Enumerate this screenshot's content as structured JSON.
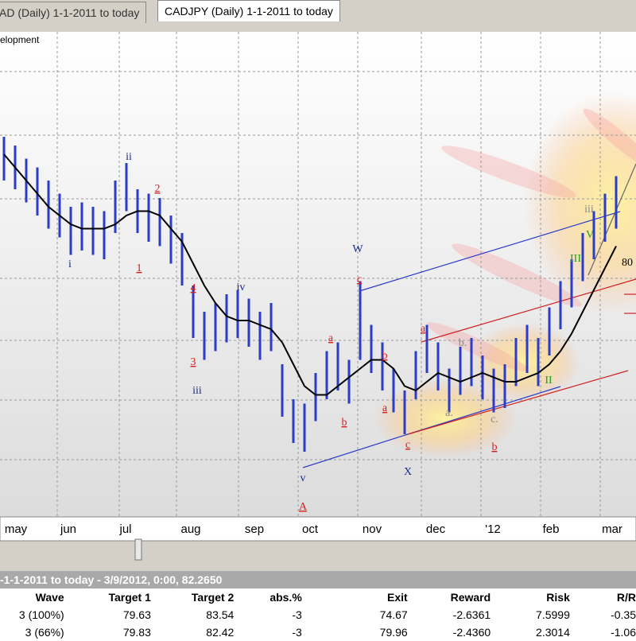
{
  "tabs": [
    "AD (Daily) 1-1-2011 to today",
    "CADJPY (Daily) 1-1-2011 to today"
  ],
  "chart": {
    "caption": "elopment",
    "right_label": "80",
    "months": [
      "may",
      "jun",
      "jul",
      "aug",
      "sep",
      "oct",
      "nov",
      "dec",
      "'12",
      "feb",
      "mar"
    ],
    "highs": [
      83.6,
      83.4,
      83.1,
      82.9,
      82.6,
      82.3,
      82.0,
      82.1,
      82.0,
      81.9,
      82.6,
      83.0,
      82.4,
      82.3,
      82.2,
      81.8,
      81.4,
      80.2,
      79.6,
      79.8,
      80.0,
      80.1,
      79.9,
      79.6,
      79.8,
      78.4,
      77.6,
      77.5,
      78.2,
      78.7,
      78.9,
      78.5,
      80.3,
      79.3,
      78.9,
      78.3,
      77.8,
      78.7,
      79.3,
      78.9,
      78.3,
      78.8,
      79.0,
      78.6,
      78.3,
      78.4,
      79.0,
      79.3,
      79.0,
      79.7,
      80.3,
      80.8,
      81.4,
      81.9,
      82.3,
      82.7
    ],
    "lows": [
      82.6,
      82.4,
      82.1,
      81.8,
      81.5,
      81.3,
      80.9,
      81.0,
      80.9,
      80.8,
      81.4,
      81.9,
      81.4,
      81.2,
      81.1,
      80.7,
      80.2,
      79.0,
      78.5,
      78.7,
      78.9,
      79.0,
      78.8,
      78.5,
      78.7,
      77.2,
      76.6,
      76.4,
      77.1,
      77.6,
      77.8,
      77.5,
      78.5,
      78.2,
      77.8,
      77.3,
      76.8,
      77.6,
      78.2,
      77.8,
      77.3,
      77.7,
      77.9,
      77.6,
      77.3,
      77.4,
      77.9,
      78.2,
      77.9,
      78.6,
      79.2,
      79.7,
      80.3,
      80.8,
      81.2,
      81.5
    ],
    "ma": [
      83.2,
      82.9,
      82.6,
      82.3,
      82.0,
      81.8,
      81.6,
      81.5,
      81.5,
      81.5,
      81.6,
      81.8,
      81.9,
      81.9,
      81.8,
      81.5,
      81.2,
      80.7,
      80.2,
      79.8,
      79.5,
      79.4,
      79.4,
      79.3,
      79.2,
      78.9,
      78.4,
      77.9,
      77.7,
      77.7,
      77.9,
      78.1,
      78.3,
      78.5,
      78.5,
      78.3,
      77.9,
      77.8,
      78.0,
      78.2,
      78.1,
      78.0,
      78.1,
      78.2,
      78.1,
      78.0,
      78.0,
      78.1,
      78.2,
      78.4,
      78.7,
      79.1,
      79.6,
      80.1,
      80.6,
      81.1
    ],
    "bar_color": "#2a3cc8",
    "ma_color": "#000000",
    "wave_labels": [
      {
        "text": "ii",
        "color": "#1a2a8a"
      },
      {
        "text": "i",
        "color": "#1a2a8a"
      },
      {
        "text": "2",
        "color": "#d02020"
      },
      {
        "text": "1",
        "color": "#d02020"
      },
      {
        "text": "iv",
        "color": "#1a2a8a"
      },
      {
        "text": "4",
        "color": "#d02020"
      },
      {
        "text": "3",
        "color": "#d02020"
      },
      {
        "text": "iii",
        "color": "#1a2a8a"
      },
      {
        "text": "W",
        "color": "#1a2a8a"
      },
      {
        "text": "c",
        "color": "#d02020"
      },
      {
        "text": "a",
        "color": "#d02020"
      },
      {
        "text": "b",
        "color": "#d02020"
      },
      {
        "text": "b",
        "color": "#d02020"
      },
      {
        "text": "a",
        "color": "#d02020"
      },
      {
        "text": "c",
        "color": "#d02020"
      },
      {
        "text": "v",
        "color": "#1a2a8a"
      },
      {
        "text": "A",
        "color": "#d02020"
      },
      {
        "text": "X",
        "color": "#1a2a8a"
      },
      {
        "text": "a",
        "color": "#d02020"
      },
      {
        "text": "b.",
        "color": "#888888"
      },
      {
        "text": "a.",
        "color": "#888888"
      },
      {
        "text": "c.",
        "color": "#888888"
      },
      {
        "text": "b",
        "color": "#d02020"
      },
      {
        "text": "III",
        "color": "#20a020"
      },
      {
        "text": "V",
        "color": "#20a020"
      },
      {
        "text": "II",
        "color": "#20a020"
      },
      {
        "text": "iii",
        "color": "#888888"
      }
    ]
  },
  "table": {
    "header": "-1-1-2011 to today - 3/9/2012, 0:00, 82.2650",
    "columns": [
      "Wave",
      "Target 1",
      "Target 2",
      "abs.%",
      "Exit",
      "Reward",
      "Risk",
      "R/R"
    ],
    "rows": [
      [
        "3 (100%)",
        "79.63",
        "83.54",
        "-3",
        "74.67",
        "-2.6361",
        "7.5999",
        "-0.35"
      ],
      [
        "3 (66%)",
        "79.83",
        "82.42",
        "-3",
        "79.96",
        "-2.4360",
        "2.3014",
        "-1.06"
      ]
    ]
  }
}
